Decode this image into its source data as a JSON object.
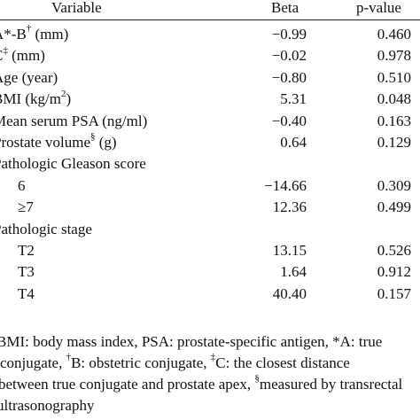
{
  "header": {
    "variable": "Variable",
    "beta": "Beta",
    "pvalue": "p-value"
  },
  "rows": [
    {
      "label": "A*-B",
      "sup": "†",
      "unit": " (mm)",
      "beta": "−0.99",
      "p": "0.460"
    },
    {
      "label": "C",
      "sup": "‡",
      "unit": " (mm)",
      "beta": "−0.02",
      "p": "0.978"
    },
    {
      "label": "Age (year)",
      "sup": "",
      "unit": "",
      "beta": "−0.80",
      "p": "0.510"
    },
    {
      "label": "BMI (kg/m",
      "sup": "2",
      "unit": ")",
      "beta": "5.31",
      "p": "0.048"
    },
    {
      "label": "Mean serum PSA (ng/ml)",
      "sup": "",
      "unit": "",
      "beta": "−0.40",
      "p": "0.163"
    },
    {
      "label": "Prostate volume",
      "sup": "§",
      "unit": " (g)",
      "beta": "0.64",
      "p": "0.129"
    },
    {
      "label": "Pathologic Gleason score",
      "sup": "",
      "unit": "",
      "beta": "",
      "p": ""
    },
    {
      "label": "6",
      "sup": "",
      "unit": "",
      "beta": "−14.66",
      "p": "0.309",
      "indent": true
    },
    {
      "label": "≥7",
      "sup": "",
      "unit": "",
      "beta": "12.36",
      "p": "0.499",
      "indent": true
    },
    {
      "label": "Pathologic stage",
      "sup": "",
      "unit": "",
      "beta": "",
      "p": ""
    },
    {
      "label": "T2",
      "sup": "",
      "unit": "",
      "beta": "13.15",
      "p": "0.526",
      "indent": true
    },
    {
      "label": "T3",
      "sup": "",
      "unit": "",
      "beta": "1.64",
      "p": "0.912",
      "indent": true
    },
    {
      "label": "T4",
      "sup": "",
      "unit": "",
      "beta": "40.40",
      "p": "0.157",
      "indent": true
    }
  ],
  "footnote": {
    "l1a": "BMI: body mass index, PSA: prostate-specific antigen, *A: true",
    "l2a": "conjugate, ",
    "l2sup1": "†",
    "l2b": "B: obstetric conjugate, ",
    "l2sup2": "‡",
    "l2c": "C: the closest distance",
    "l3a": "between true conjugate and prostate apex, ",
    "l3sup": "§",
    "l3b": "measured by transrectal",
    "l4": "ultrasonography"
  }
}
